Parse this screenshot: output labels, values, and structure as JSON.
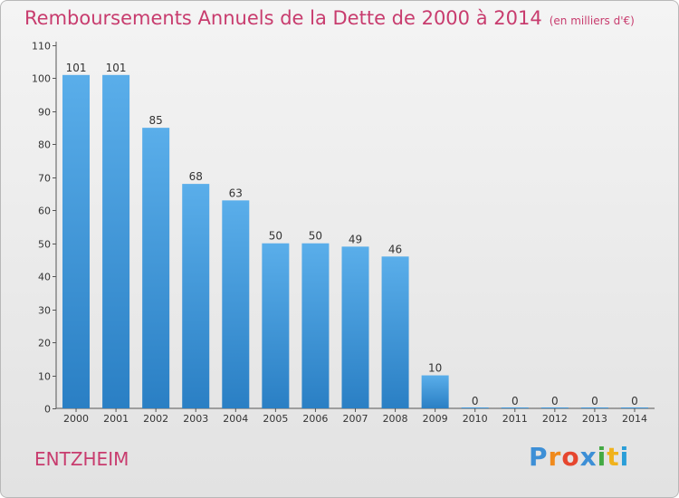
{
  "chart_data": {
    "type": "bar",
    "title": "Remboursements Annuels de la Dette de 2000 à 2014",
    "subtitle": "(en milliers d'€)",
    "categories": [
      "2000",
      "2001",
      "2002",
      "2003",
      "2004",
      "2005",
      "2006",
      "2007",
      "2008",
      "2009",
      "2010",
      "2011",
      "2012",
      "2013",
      "2014"
    ],
    "values": [
      101,
      101,
      85,
      68,
      63,
      50,
      50,
      49,
      46,
      10,
      0,
      0,
      0,
      0,
      0
    ],
    "ylim": [
      0,
      110
    ],
    "yticks": [
      0,
      10,
      20,
      30,
      40,
      50,
      60,
      70,
      80,
      90,
      100,
      110
    ],
    "xlabel": "",
    "ylabel": "",
    "grid": false,
    "colors": {
      "bar_top": "#5aaeea",
      "bar_bottom": "#2a7fc4",
      "axis": "#555555",
      "label": "#333333"
    }
  },
  "footer": {
    "commune": "ENTZHEIM",
    "logo_text": "Proxiti",
    "title_color": "#c83c6e"
  }
}
